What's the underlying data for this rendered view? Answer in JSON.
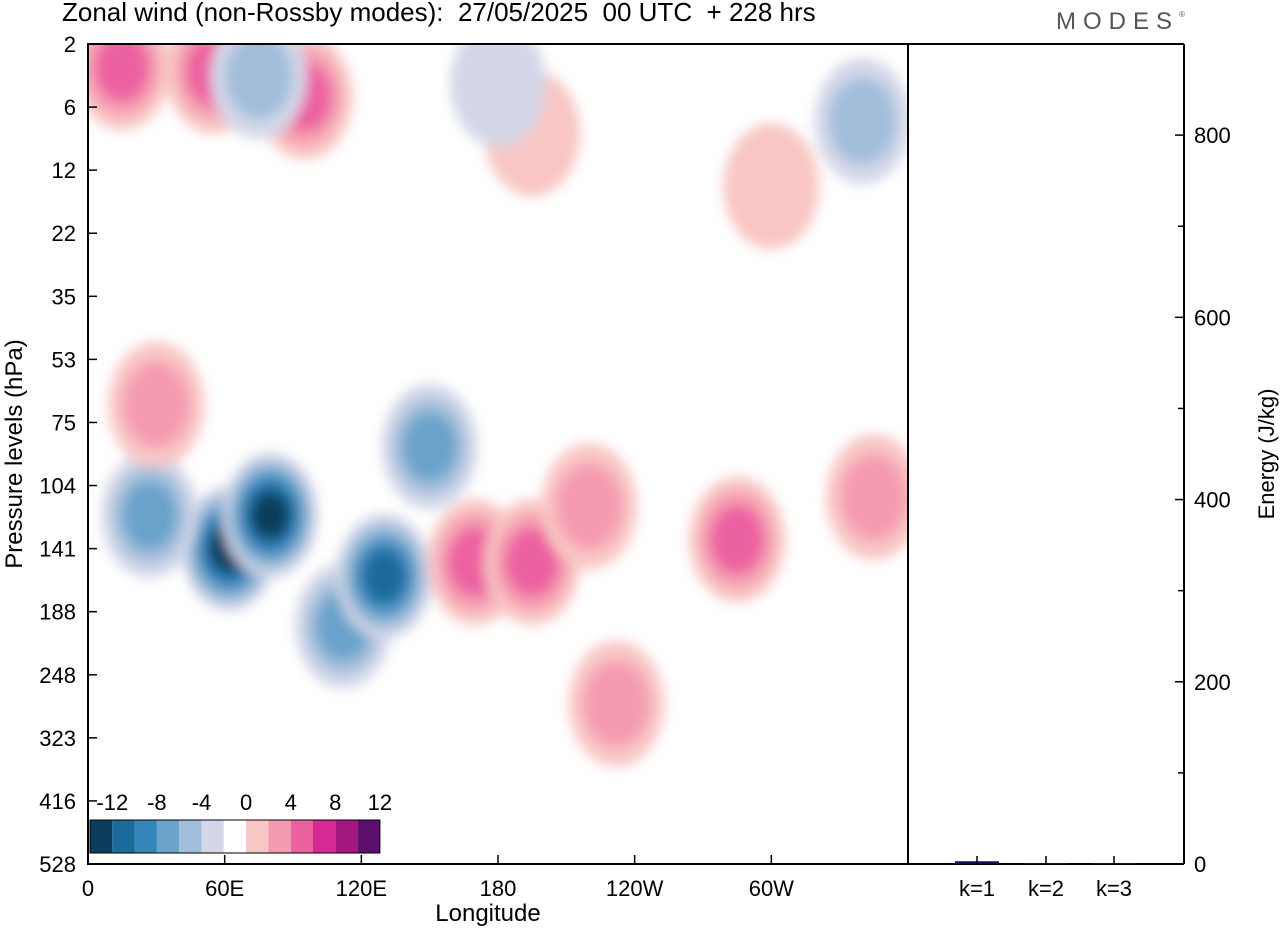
{
  "header": {
    "title": "Zonal wind (non-Rossby modes):  27/05/2025  00 UTC  + 228 hrs",
    "brand": "MODES",
    "brand_mark": "®"
  },
  "chart_data": [
    {
      "type": "heatmap",
      "title": "Zonal wind (non-Rossby modes):  27/05/2025  00 UTC  + 228 hrs",
      "xlabel": "Longitude",
      "ylabel": "Pressure levels (hPa)",
      "x_tick_labels": [
        "0",
        "60E",
        "120E",
        "180",
        "120W",
        "60W"
      ],
      "x_tick_values_deg_east": [
        0,
        60,
        120,
        180,
        240,
        300
      ],
      "xlim_deg_east": [
        0,
        360
      ],
      "y_tick_labels": [
        "2",
        "6",
        "12",
        "22",
        "35",
        "53",
        "75",
        "104",
        "141",
        "188",
        "248",
        "323",
        "416",
        "528"
      ],
      "y_levels_hpa": [
        2,
        6,
        12,
        22,
        35,
        53,
        75,
        104,
        141,
        188,
        248,
        323,
        416,
        528
      ],
      "colorbar": {
        "labels": [
          "-12",
          "-8",
          "-4",
          "0",
          "4",
          "8",
          "12"
        ],
        "levels": [
          -14,
          -12,
          -10,
          -8,
          -6,
          -4,
          -2,
          2,
          4,
          6,
          8,
          10,
          12,
          14
        ],
        "colors": [
          "#0c3d5c",
          "#1b6a9c",
          "#3485bb",
          "#6aa3cb",
          "#a2bedb",
          "#d3d7e8",
          "#ffffff",
          "#f8c6c4",
          "#f59bb1",
          "#ec62a0",
          "#d42893",
          "#a3187f",
          "#5c0f6d"
        ]
      },
      "features": [
        {
          "lon": 62,
          "p": 141,
          "value": -12
        },
        {
          "lon": 80,
          "p": 120,
          "value": -12
        },
        {
          "lon": 27,
          "p": 120,
          "value": -6
        },
        {
          "lon": 112,
          "p": 200,
          "value": -6
        },
        {
          "lon": 130,
          "p": 160,
          "value": -10
        },
        {
          "lon": 150,
          "p": 85,
          "value": -6
        },
        {
          "lon": 170,
          "p": 150,
          "value": 6
        },
        {
          "lon": 195,
          "p": 150,
          "value": 7
        },
        {
          "lon": 220,
          "p": 115,
          "value": 5
        },
        {
          "lon": 232,
          "p": 280,
          "value": 5
        },
        {
          "lon": 285,
          "p": 135,
          "value": 7
        },
        {
          "lon": 345,
          "p": 110,
          "value": 5
        },
        {
          "lon": 30,
          "p": 68,
          "value": 4
        },
        {
          "lon": 15,
          "p": 3,
          "value": 6
        },
        {
          "lon": 55,
          "p": 3.2,
          "value": 6
        },
        {
          "lon": 95,
          "p": 5,
          "value": 6
        },
        {
          "lon": 195,
          "p": 8,
          "value": 3
        },
        {
          "lon": 75,
          "p": 3.5,
          "value": -5
        },
        {
          "lon": 180,
          "p": 4,
          "value": -3
        },
        {
          "lon": 340,
          "p": 7,
          "value": -5
        },
        {
          "lon": 300,
          "p": 14,
          "value": 3
        }
      ]
    },
    {
      "type": "bar",
      "categories": [
        "k=1",
        "k=2",
        "k=3"
      ],
      "values": [
        3,
        1,
        1
      ],
      "ylabel": "Energy (J/kg)",
      "ylim": [
        0,
        900
      ],
      "y_ticks": [
        0,
        200,
        400,
        600,
        800
      ],
      "bar_color": "#0d0d5e"
    }
  ]
}
